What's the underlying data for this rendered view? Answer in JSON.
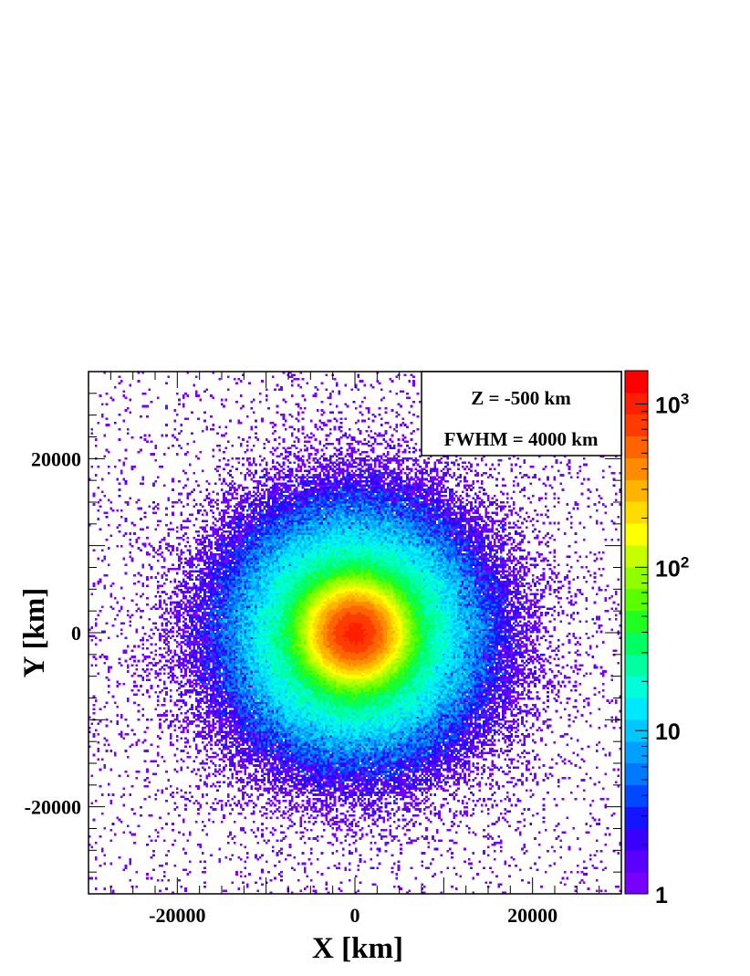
{
  "chart_data": {
    "type": "heatmap",
    "title": "",
    "xlabel": "X [km]",
    "ylabel": "Y [km]",
    "xlim": [
      -30000,
      30000
    ],
    "ylim": [
      -30000,
      30000
    ],
    "x_ticks": [
      -20000,
      0,
      20000
    ],
    "y_ticks": [
      -20000,
      0,
      20000
    ],
    "x_tick_labels": [
      "-20000",
      "0",
      "20000"
    ],
    "y_tick_labels": [
      "-20000",
      "0",
      "20000"
    ],
    "colorbar": {
      "scale": "log",
      "range": [
        1,
        1600
      ],
      "ticks": [
        {
          "base": "1",
          "exponent": ""
        },
        {
          "base": "10",
          "exponent": ""
        },
        {
          "base": "10",
          "exponent": "2"
        },
        {
          "base": "10",
          "exponent": "3"
        }
      ],
      "colors": [
        "#7700ff",
        "#5a00ff",
        "#3a00ff",
        "#1414ff",
        "#0048ff",
        "#0078ff",
        "#00a0ff",
        "#00c8ff",
        "#00e8ff",
        "#00ffd8",
        "#00ffa0",
        "#00ff60",
        "#20ff20",
        "#5aff00",
        "#90ff00",
        "#c8ff00",
        "#ffff00",
        "#ffdc00",
        "#ffb400",
        "#ff8c00",
        "#ff6400",
        "#ff3c00",
        "#ff1e00",
        "#ff0000"
      ]
    },
    "annotation": {
      "lines": [
        "Z = -500 km",
        "FWHM = 4000 km"
      ],
      "placement": "top-right"
    },
    "distribution": {
      "center": [
        0,
        0
      ],
      "peak_count": 1600,
      "fwhm_km": 4000,
      "bins": 250
    },
    "grid": false
  }
}
